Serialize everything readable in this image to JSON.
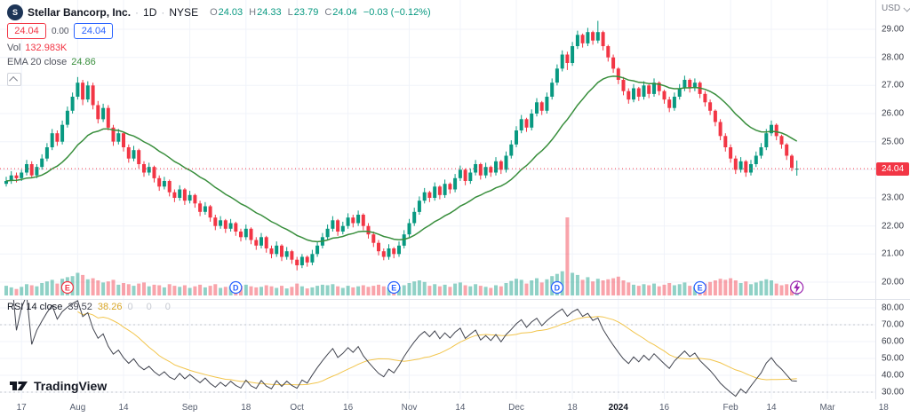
{
  "header": {
    "symbol": "Stellar Bancorp, Inc.",
    "symbol_icon_text": "S",
    "sep": "·",
    "timeframe": "1D",
    "exchange": "NYSE",
    "ohlc": {
      "o_label": "O",
      "o": "24.03",
      "h_label": "H",
      "h": "24.33",
      "l_label": "L",
      "l": "23.79",
      "c_label": "C",
      "c": "24.04",
      "change": "−0.03 (−0.12%)"
    },
    "trade": {
      "sell": "24.04",
      "spread": "0.00",
      "buy": "24.04"
    },
    "volume": {
      "label": "Vol",
      "value": "132.983K"
    },
    "ema": {
      "label": "EMA 20 close",
      "value": "24.86"
    },
    "currency": "USD"
  },
  "rsi_header": {
    "label": "RSI 14 close",
    "value": "39.52",
    "ma_value": "38.26",
    "hidden_values": "0 0 0"
  },
  "logo_text": "TradingView",
  "colors": {
    "up": "#089981",
    "down": "#f23645",
    "volume_up": "rgba(8,153,129,0.45)",
    "volume_down": "rgba(242,54,69,0.45)",
    "ema": "#388e3c",
    "rsi": "#40434e",
    "rsi_ma": "#f2c54c",
    "grid": "#f0f3fa",
    "band": "#9598a1",
    "badge": "#f23645",
    "accent_blue": "#2962ff",
    "flash": "#9c27b0"
  },
  "chart_data": {
    "type": "candlestick",
    "title": "Stellar Bancorp, Inc.",
    "interval": "1D",
    "exchange": "NYSE",
    "price_range": [
      19.4,
      30.05
    ],
    "rsi_range": [
      26,
      85
    ],
    "volume_unit": "K",
    "ema_period": 20,
    "rsi_period": 14,
    "rsi_ma_period": 14,
    "price_line": 24.04,
    "price_label": "24.04",
    "price_ticks": [
      29,
      28,
      27,
      26,
      25,
      24,
      23,
      22,
      21,
      20
    ],
    "rsi_ticks": [
      80,
      70,
      60,
      50,
      40,
      30
    ],
    "rsi_bands": [
      70,
      30
    ],
    "time_labels": [
      [
        "17",
        3
      ],
      [
        "Aug",
        14
      ],
      [
        "14",
        23
      ],
      [
        "Sep",
        36
      ],
      [
        "18",
        47
      ],
      [
        "Oct",
        57
      ],
      [
        "16",
        67
      ],
      [
        "Nov",
        79
      ],
      [
        "14",
        89
      ],
      [
        "Dec",
        100
      ],
      [
        "18",
        111
      ],
      [
        "2024",
        120
      ],
      [
        "16",
        129
      ],
      [
        "Feb",
        142
      ],
      [
        "14",
        150
      ],
      [
        "Mar",
        161
      ],
      [
        "18",
        172
      ]
    ],
    "markers": [
      {
        "label": "E",
        "day": 12,
        "color": "#f23645",
        "type": "letter"
      },
      {
        "label": "D",
        "day": 45,
        "color": "#2962ff",
        "type": "letter"
      },
      {
        "label": "E",
        "day": 76,
        "color": "#2962ff",
        "type": "letter"
      },
      {
        "label": "D",
        "day": 108,
        "color": "#2962ff",
        "type": "letter"
      },
      {
        "label": "E",
        "day": 136,
        "color": "#2962ff",
        "type": "letter"
      },
      {
        "label": "flash",
        "day": 155,
        "color": "#9c27b0",
        "type": "flash"
      }
    ],
    "candles": [
      [
        23.5,
        23.75,
        23.4,
        23.6,
        180
      ],
      [
        23.6,
        23.95,
        23.5,
        23.8,
        150
      ],
      [
        23.8,
        23.9,
        23.55,
        23.7,
        120
      ],
      [
        23.7,
        24.0,
        23.6,
        23.9,
        160
      ],
      [
        23.9,
        24.35,
        23.8,
        24.2,
        210
      ],
      [
        24.2,
        24.3,
        23.7,
        23.8,
        190
      ],
      [
        23.8,
        24.2,
        23.7,
        24.1,
        170
      ],
      [
        24.1,
        24.55,
        24.0,
        24.4,
        230
      ],
      [
        24.4,
        24.95,
        24.3,
        24.8,
        260
      ],
      [
        24.8,
        25.45,
        24.7,
        25.3,
        290
      ],
      [
        25.3,
        25.4,
        24.85,
        25.0,
        220
      ],
      [
        25.0,
        25.75,
        24.9,
        25.6,
        310
      ],
      [
        25.6,
        26.25,
        25.5,
        26.1,
        340
      ],
      [
        26.1,
        26.75,
        26.0,
        26.6,
        360
      ],
      [
        26.6,
        27.3,
        26.5,
        27.1,
        420
      ],
      [
        27.1,
        27.2,
        26.3,
        26.5,
        380
      ],
      [
        26.5,
        27.15,
        26.4,
        27.0,
        300
      ],
      [
        27.0,
        27.1,
        26.15,
        26.3,
        320
      ],
      [
        26.3,
        26.45,
        25.65,
        25.8,
        280
      ],
      [
        25.8,
        26.35,
        25.7,
        26.2,
        240
      ],
      [
        26.2,
        26.3,
        25.4,
        25.5,
        260
      ],
      [
        25.5,
        25.6,
        24.85,
        25.0,
        290
      ],
      [
        25.0,
        25.45,
        24.9,
        25.3,
        200
      ],
      [
        25.3,
        25.35,
        24.65,
        24.8,
        230
      ],
      [
        24.8,
        24.9,
        24.25,
        24.4,
        210
      ],
      [
        24.4,
        24.85,
        24.3,
        24.7,
        180
      ],
      [
        24.7,
        24.75,
        24.05,
        24.2,
        220
      ],
      [
        24.2,
        24.3,
        23.75,
        23.9,
        240
      ],
      [
        23.9,
        24.25,
        23.8,
        24.1,
        170
      ],
      [
        24.1,
        24.15,
        23.55,
        23.7,
        200
      ],
      [
        23.7,
        23.8,
        23.25,
        23.4,
        190
      ],
      [
        23.4,
        23.75,
        23.3,
        23.6,
        150
      ],
      [
        23.6,
        23.65,
        23.05,
        23.2,
        210
      ],
      [
        23.2,
        23.3,
        22.85,
        23.0,
        180
      ],
      [
        23.0,
        23.45,
        22.9,
        23.3,
        160
      ],
      [
        23.3,
        23.35,
        22.75,
        22.9,
        190
      ],
      [
        22.9,
        23.25,
        22.8,
        23.1,
        140
      ],
      [
        23.1,
        23.15,
        22.65,
        22.8,
        170
      ],
      [
        22.8,
        22.9,
        22.35,
        22.5,
        200
      ],
      [
        22.5,
        22.85,
        22.4,
        22.7,
        150
      ],
      [
        22.7,
        22.75,
        22.15,
        22.3,
        180
      ],
      [
        22.3,
        22.4,
        21.85,
        22.0,
        210
      ],
      [
        22.0,
        22.35,
        21.9,
        22.2,
        140
      ],
      [
        22.2,
        22.25,
        21.75,
        21.9,
        160
      ],
      [
        21.9,
        22.25,
        21.8,
        22.1,
        170
      ],
      [
        22.1,
        22.15,
        21.65,
        21.8,
        150
      ],
      [
        21.8,
        21.9,
        21.45,
        21.6,
        180
      ],
      [
        21.6,
        22.05,
        21.5,
        21.9,
        200
      ],
      [
        21.9,
        21.95,
        21.35,
        21.5,
        170
      ],
      [
        21.5,
        21.6,
        21.15,
        21.3,
        150
      ],
      [
        21.3,
        21.75,
        21.2,
        21.6,
        160
      ],
      [
        21.6,
        21.65,
        21.05,
        21.2,
        190
      ],
      [
        21.2,
        21.3,
        20.85,
        21.0,
        170
      ],
      [
        21.0,
        21.45,
        20.9,
        21.3,
        140
      ],
      [
        21.3,
        21.35,
        20.75,
        20.9,
        180
      ],
      [
        20.9,
        21.25,
        20.8,
        21.1,
        130
      ],
      [
        21.1,
        21.15,
        20.65,
        20.8,
        160
      ],
      [
        20.8,
        20.9,
        20.42,
        20.6,
        220
      ],
      [
        20.6,
        21.0,
        20.5,
        20.9,
        170
      ],
      [
        20.9,
        20.95,
        20.55,
        20.7,
        130
      ],
      [
        20.7,
        21.15,
        20.6,
        21.0,
        150
      ],
      [
        21.0,
        21.45,
        20.9,
        21.3,
        180
      ],
      [
        21.3,
        21.75,
        21.2,
        21.6,
        200
      ],
      [
        21.6,
        22.05,
        21.5,
        21.9,
        190
      ],
      [
        21.9,
        22.35,
        21.8,
        22.2,
        210
      ],
      [
        22.2,
        22.25,
        21.65,
        21.8,
        170
      ],
      [
        21.8,
        22.15,
        21.7,
        22.0,
        140
      ],
      [
        22.0,
        22.45,
        21.9,
        22.3,
        180
      ],
      [
        22.3,
        22.4,
        21.95,
        22.1,
        150
      ],
      [
        22.1,
        22.55,
        22.0,
        22.4,
        170
      ],
      [
        22.4,
        22.45,
        21.85,
        22.0,
        190
      ],
      [
        22.0,
        22.1,
        21.55,
        21.7,
        160
      ],
      [
        21.7,
        21.8,
        21.25,
        21.4,
        180
      ],
      [
        21.4,
        21.5,
        20.95,
        21.1,
        200
      ],
      [
        21.1,
        21.2,
        20.78,
        20.9,
        170
      ],
      [
        20.9,
        21.35,
        20.8,
        21.2,
        150
      ],
      [
        21.2,
        21.25,
        20.85,
        21.0,
        130
      ],
      [
        21.0,
        21.45,
        20.9,
        21.3,
        160
      ],
      [
        21.3,
        21.85,
        21.2,
        21.7,
        190
      ],
      [
        21.7,
        22.25,
        21.6,
        22.1,
        230
      ],
      [
        22.1,
        22.65,
        22.0,
        22.5,
        260
      ],
      [
        22.5,
        23.05,
        22.4,
        22.9,
        280
      ],
      [
        22.9,
        23.35,
        22.8,
        23.2,
        250
      ],
      [
        23.2,
        23.25,
        22.85,
        23.0,
        180
      ],
      [
        23.0,
        23.55,
        22.9,
        23.4,
        210
      ],
      [
        23.4,
        23.45,
        22.95,
        23.1,
        170
      ],
      [
        23.1,
        23.65,
        23.0,
        23.5,
        200
      ],
      [
        23.5,
        23.55,
        23.15,
        23.3,
        160
      ],
      [
        23.3,
        23.85,
        23.2,
        23.7,
        220
      ],
      [
        23.7,
        24.15,
        23.6,
        24.0,
        240
      ],
      [
        24.0,
        24.05,
        23.45,
        23.6,
        190
      ],
      [
        23.6,
        24.05,
        23.5,
        23.9,
        170
      ],
      [
        23.9,
        24.35,
        23.8,
        24.2,
        210
      ],
      [
        24.2,
        24.25,
        23.65,
        23.8,
        180
      ],
      [
        23.8,
        24.25,
        23.7,
        24.1,
        160
      ],
      [
        24.1,
        24.15,
        23.75,
        23.9,
        140
      ],
      [
        23.9,
        24.45,
        23.8,
        24.3,
        190
      ],
      [
        24.3,
        24.35,
        23.85,
        24.0,
        170
      ],
      [
        24.0,
        24.65,
        23.9,
        24.5,
        230
      ],
      [
        24.5,
        25.05,
        24.4,
        24.9,
        270
      ],
      [
        24.9,
        25.55,
        24.8,
        25.4,
        310
      ],
      [
        25.4,
        25.95,
        25.3,
        25.8,
        290
      ],
      [
        25.8,
        25.85,
        25.35,
        25.5,
        220
      ],
      [
        25.5,
        26.15,
        25.4,
        26.0,
        280
      ],
      [
        26.0,
        26.55,
        25.9,
        26.4,
        320
      ],
      [
        26.4,
        26.45,
        25.95,
        26.1,
        240
      ],
      [
        26.1,
        26.75,
        26.0,
        26.6,
        300
      ],
      [
        26.6,
        27.25,
        26.5,
        27.1,
        360
      ],
      [
        27.1,
        27.75,
        27.0,
        27.6,
        400
      ],
      [
        27.6,
        28.25,
        27.5,
        28.1,
        450
      ],
      [
        28.1,
        28.2,
        27.55,
        27.8,
        1450
      ],
      [
        27.8,
        28.55,
        27.7,
        28.4,
        420
      ],
      [
        28.4,
        28.95,
        28.3,
        28.8,
        380
      ],
      [
        28.8,
        28.85,
        28.35,
        28.5,
        290
      ],
      [
        28.5,
        29.05,
        28.4,
        28.9,
        340
      ],
      [
        28.9,
        28.95,
        28.45,
        28.6,
        260
      ],
      [
        28.6,
        29.3,
        28.5,
        28.9,
        310
      ],
      [
        28.9,
        28.95,
        28.25,
        28.4,
        280
      ],
      [
        28.4,
        28.45,
        27.85,
        28.0,
        300
      ],
      [
        28.0,
        28.1,
        27.45,
        27.6,
        320
      ],
      [
        27.6,
        27.65,
        27.05,
        27.2,
        350
      ],
      [
        27.2,
        27.3,
        26.65,
        26.8,
        280
      ],
      [
        26.8,
        26.9,
        26.35,
        26.5,
        240
      ],
      [
        26.5,
        27.05,
        26.4,
        26.9,
        200
      ],
      [
        26.9,
        26.95,
        26.45,
        26.6,
        180
      ],
      [
        26.6,
        27.15,
        26.5,
        27.0,
        210
      ],
      [
        27.0,
        27.05,
        26.55,
        26.7,
        190
      ],
      [
        26.7,
        27.25,
        26.6,
        27.1,
        220
      ],
      [
        27.1,
        27.15,
        26.65,
        26.8,
        170
      ],
      [
        26.8,
        26.85,
        26.35,
        26.5,
        200
      ],
      [
        26.5,
        26.6,
        26.05,
        26.2,
        230
      ],
      [
        26.2,
        26.75,
        26.1,
        26.6,
        190
      ],
      [
        26.6,
        27.05,
        26.5,
        26.9,
        210
      ],
      [
        26.9,
        27.35,
        26.8,
        27.2,
        240
      ],
      [
        27.2,
        27.25,
        26.75,
        26.9,
        180
      ],
      [
        26.9,
        27.25,
        26.8,
        27.1,
        160
      ],
      [
        27.1,
        27.15,
        26.55,
        26.7,
        200
      ],
      [
        26.7,
        26.8,
        26.25,
        26.4,
        220
      ],
      [
        26.4,
        26.5,
        25.95,
        26.1,
        250
      ],
      [
        26.1,
        26.15,
        25.55,
        25.7,
        280
      ],
      [
        25.7,
        25.8,
        25.05,
        25.2,
        310
      ],
      [
        25.2,
        25.3,
        24.65,
        24.8,
        290
      ],
      [
        24.8,
        24.9,
        24.25,
        24.4,
        320
      ],
      [
        24.4,
        24.5,
        23.85,
        24.0,
        280
      ],
      [
        24.0,
        24.45,
        23.9,
        24.3,
        230
      ],
      [
        24.3,
        24.35,
        23.75,
        23.9,
        260
      ],
      [
        23.9,
        24.35,
        23.8,
        24.2,
        210
      ],
      [
        24.2,
        24.65,
        24.1,
        24.5,
        240
      ],
      [
        24.5,
        24.95,
        24.4,
        24.8,
        270
      ],
      [
        24.8,
        25.45,
        24.7,
        25.3,
        300
      ],
      [
        25.3,
        25.75,
        25.2,
        25.6,
        280
      ],
      [
        25.6,
        25.65,
        25.05,
        25.2,
        220
      ],
      [
        25.2,
        25.25,
        24.75,
        24.9,
        190
      ],
      [
        24.9,
        24.95,
        24.35,
        24.5,
        210
      ],
      [
        24.5,
        24.55,
        23.95,
        24.07,
        180
      ],
      [
        24.03,
        24.33,
        23.79,
        24.04,
        133
      ]
    ]
  }
}
